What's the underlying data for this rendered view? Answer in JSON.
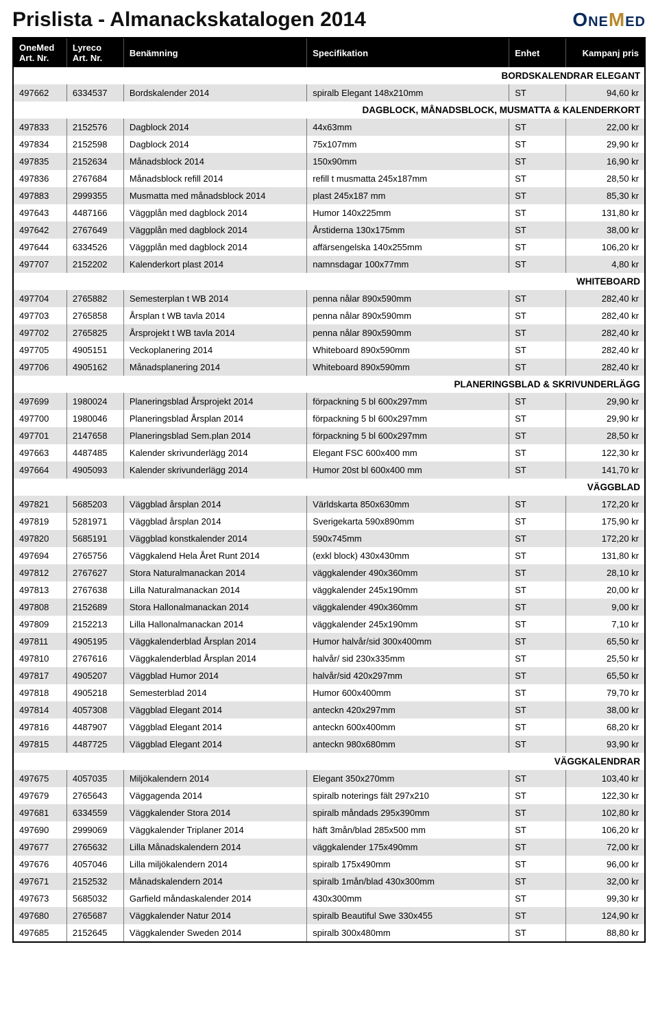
{
  "document_title": "Prislista - Almanackskatalogen 2014",
  "logo": {
    "part1": "One",
    "part2": "M",
    "part3": "ed"
  },
  "columns": {
    "art1": "OneMed Art. Nr.",
    "art2": "Lyreco Art. Nr.",
    "name": "Benämning",
    "spec": "Specifikation",
    "unit": "Enhet",
    "price": "Kampanj pris"
  },
  "colors": {
    "header_bg": "#000000",
    "header_fg": "#ffffff",
    "row_alt_bg": "#e2e2e2",
    "row_plain_bg": "#ffffff",
    "border": "#000000",
    "cell_border": "#777777",
    "logo_blue": "#0a2a5c",
    "logo_gold": "#b88a2e"
  },
  "sections": [
    {
      "title": "BORDSKALENDRAR ELEGANT",
      "rows": [
        {
          "a1": "497662",
          "a2": "6334537",
          "name": "Bordskalender 2014",
          "spec": "spiralb Elegant 148x210mm",
          "unit": "ST",
          "price": "94,60 kr"
        }
      ]
    },
    {
      "title": "DAGBLOCK, MÅNADSBLOCK, MUSMATTA & KALENDERKORT",
      "rows": [
        {
          "a1": "497833",
          "a2": "2152576",
          "name": "Dagblock 2014",
          "spec": "44x63mm",
          "unit": "ST",
          "price": "22,00 kr"
        },
        {
          "a1": "497834",
          "a2": "2152598",
          "name": "Dagblock 2014",
          "spec": "75x107mm",
          "unit": "ST",
          "price": "29,90 kr"
        },
        {
          "a1": "497835",
          "a2": "2152634",
          "name": "Månadsblock 2014",
          "spec": "150x90mm",
          "unit": "ST",
          "price": "16,90 kr"
        },
        {
          "a1": "497836",
          "a2": "2767684",
          "name": "Månadsblock refill 2014",
          "spec": "refill t musmatta 245x187mm",
          "unit": "ST",
          "price": "28,50 kr"
        },
        {
          "a1": "497883",
          "a2": "2999355",
          "name": "Musmatta med månadsblock 2014",
          "spec": "plast 245x187 mm",
          "unit": "ST",
          "price": "85,30 kr"
        },
        {
          "a1": "497643",
          "a2": "4487166",
          "name": "Väggplån med dagblock 2014",
          "spec": "Humor 140x225mm",
          "unit": "ST",
          "price": "131,80 kr"
        },
        {
          "a1": "497642",
          "a2": "2767649",
          "name": "Väggplån med dagblock 2014",
          "spec": "Årstiderna 130x175mm",
          "unit": "ST",
          "price": "38,00 kr"
        },
        {
          "a1": "497644",
          "a2": "6334526",
          "name": "Väggplån med dagblock 2014",
          "spec": "affärsengelska 140x255mm",
          "unit": "ST",
          "price": "106,20 kr"
        },
        {
          "a1": "497707",
          "a2": "2152202",
          "name": "Kalenderkort plast 2014",
          "spec": "namnsdagar 100x77mm",
          "unit": "ST",
          "price": "4,80 kr"
        }
      ]
    },
    {
      "title": "WHITEBOARD",
      "rows": [
        {
          "a1": "497704",
          "a2": "2765882",
          "name": "Semesterplan t WB 2014",
          "spec": "penna nålar 890x590mm",
          "unit": "ST",
          "price": "282,40 kr"
        },
        {
          "a1": "497703",
          "a2": "2765858",
          "name": "Årsplan t WB tavla 2014",
          "spec": "penna nålar 890x590mm",
          "unit": "ST",
          "price": "282,40 kr"
        },
        {
          "a1": "497702",
          "a2": "2765825",
          "name": "Årsprojekt t WB tavla 2014",
          "spec": "penna nålar 890x590mm",
          "unit": "ST",
          "price": "282,40 kr"
        },
        {
          "a1": "497705",
          "a2": "4905151",
          "name": "Veckoplanering 2014",
          "spec": "Whiteboard 890x590mm",
          "unit": "ST",
          "price": "282,40 kr"
        },
        {
          "a1": "497706",
          "a2": "4905162",
          "name": "Månadsplanering 2014",
          "spec": "Whiteboard 890x590mm",
          "unit": "ST",
          "price": "282,40 kr"
        }
      ]
    },
    {
      "title": "PLANERINGSBLAD & SKRIVUNDERLÄGG",
      "rows": [
        {
          "a1": "497699",
          "a2": "1980024",
          "name": "Planeringsblad Årsprojekt 2014",
          "spec": "förpackning 5 bl 600x297mm",
          "unit": "ST",
          "price": "29,90 kr"
        },
        {
          "a1": "497700",
          "a2": "1980046",
          "name": "Planeringsblad Årsplan 2014",
          "spec": "förpackning 5 bl 600x297mm",
          "unit": "ST",
          "price": "29,90 kr"
        },
        {
          "a1": "497701",
          "a2": "2147658",
          "name": "Planeringsblad Sem.plan 2014",
          "spec": "förpackning 5 bl 600x297mm",
          "unit": "ST",
          "price": "28,50 kr"
        },
        {
          "a1": "497663",
          "a2": "4487485",
          "name": "Kalender skrivunderlägg 2014",
          "spec": "Elegant FSC 600x400 mm",
          "unit": "ST",
          "price": "122,30 kr"
        },
        {
          "a1": "497664",
          "a2": "4905093",
          "name": "Kalender skrivunderlägg 2014",
          "spec": "Humor 20st bl  600x400 mm",
          "unit": "ST",
          "price": "141,70 kr"
        }
      ]
    },
    {
      "title": "VÄGGBLAD",
      "rows": [
        {
          "a1": "497821",
          "a2": "5685203",
          "name": "Väggblad årsplan 2014",
          "spec": "Världskarta 850x630mm",
          "unit": "ST",
          "price": "172,20 kr"
        },
        {
          "a1": "497819",
          "a2": "5281971",
          "name": "Väggblad årsplan 2014",
          "spec": "Sverigekarta 590x890mm",
          "unit": "ST",
          "price": "175,90 kr"
        },
        {
          "a1": "497820",
          "a2": "5685191",
          "name": "Väggblad konstkalender 2014",
          "spec": "590x745mm",
          "unit": "ST",
          "price": "172,20 kr"
        },
        {
          "a1": "497694",
          "a2": "2765756",
          "name": "Väggkalend Hela Året Runt 2014",
          "spec": "(exkl block) 430x430mm",
          "unit": "ST",
          "price": "131,80 kr"
        },
        {
          "a1": "497812",
          "a2": "2767627",
          "name": "Stora Naturalmanackan 2014",
          "spec": "väggkalender 490x360mm",
          "unit": "ST",
          "price": "28,10 kr"
        },
        {
          "a1": "497813",
          "a2": "2767638",
          "name": "Lilla Naturalmanackan 2014",
          "spec": "väggkalender 245x190mm",
          "unit": "ST",
          "price": "20,00 kr"
        },
        {
          "a1": "497808",
          "a2": "2152689",
          "name": "Stora Hallonalmanackan 2014",
          "spec": "väggkalender 490x360mm",
          "unit": "ST",
          "price": "9,00 kr"
        },
        {
          "a1": "497809",
          "a2": "2152213",
          "name": "Lilla Hallonalmanackan 2014",
          "spec": "väggkalender 245x190mm",
          "unit": "ST",
          "price": "7,10 kr"
        },
        {
          "a1": "497811",
          "a2": "4905195",
          "name": "Väggkalenderblad Årsplan 2014",
          "spec": "Humor halvår/sid 300x400mm",
          "unit": "ST",
          "price": "65,50 kr"
        },
        {
          "a1": "497810",
          "a2": "2767616",
          "name": "Väggkalenderblad Årsplan 2014",
          "spec": "halvår/ sid 230x335mm",
          "unit": "ST",
          "price": "25,50 kr"
        },
        {
          "a1": "497817",
          "a2": "4905207",
          "name": "Väggblad Humor 2014",
          "spec": "halvår/sid 420x297mm",
          "unit": "ST",
          "price": "65,50 kr"
        },
        {
          "a1": "497818",
          "a2": "4905218",
          "name": "Semesterblad 2014",
          "spec": "Humor 600x400mm",
          "unit": "ST",
          "price": "79,70 kr"
        },
        {
          "a1": "497814",
          "a2": "4057308",
          "name": "Väggblad Elegant  2014",
          "spec": "anteckn 420x297mm",
          "unit": "ST",
          "price": "38,00 kr"
        },
        {
          "a1": "497816",
          "a2": "4487907",
          "name": "Väggblad Elegant  2014",
          "spec": "anteckn 600x400mm",
          "unit": "ST",
          "price": "68,20 kr"
        },
        {
          "a1": "497815",
          "a2": "4487725",
          "name": "Väggblad Elegant  2014",
          "spec": "anteckn 980x680mm",
          "unit": "ST",
          "price": "93,90 kr"
        }
      ]
    },
    {
      "title": "VÄGGKALENDRAR",
      "rows": [
        {
          "a1": "497675",
          "a2": "4057035",
          "name": "Miljökalendern 2014",
          "spec": "Elegant 350x270mm",
          "unit": "ST",
          "price": "103,40 kr"
        },
        {
          "a1": "497679",
          "a2": "2765643",
          "name": "Väggagenda 2014",
          "spec": "spiralb noterings fält 297x210",
          "unit": "ST",
          "price": "122,30 kr"
        },
        {
          "a1": "497681",
          "a2": "6334559",
          "name": "Väggkalender Stora 2014",
          "spec": "spiralb måndads 295x390mm",
          "unit": "ST",
          "price": "102,80 kr"
        },
        {
          "a1": "497690",
          "a2": "2999069",
          "name": "Väggkalender Triplaner 2014",
          "spec": "häft 3mån/blad 285x500 mm",
          "unit": "ST",
          "price": "106,20 kr"
        },
        {
          "a1": "497677",
          "a2": "2765632",
          "name": "Lilla Månadskalendern 2014",
          "spec": "väggkalender 175x490mm",
          "unit": "ST",
          "price": "72,00 kr"
        },
        {
          "a1": "497676",
          "a2": "4057046",
          "name": "Lilla miljökalendern 2014",
          "spec": "spiralb 175x490mm",
          "unit": "ST",
          "price": "96,00 kr"
        },
        {
          "a1": "497671",
          "a2": "2152532",
          "name": "Månadskalendern 2014",
          "spec": "spiralb 1mån/blad 430x300mm",
          "unit": "ST",
          "price": "32,00 kr"
        },
        {
          "a1": "497673",
          "a2": "5685032",
          "name": "Garfield måndaskalender 2014",
          "spec": "430x300mm",
          "unit": "ST",
          "price": "99,30 kr"
        },
        {
          "a1": "497680",
          "a2": "2765687",
          "name": "Väggkalender Natur 2014",
          "spec": "spiralb Beautiful Swe 330x455",
          "unit": "ST",
          "price": "124,90 kr"
        },
        {
          "a1": "497685",
          "a2": "2152645",
          "name": "Väggkalender Sweden 2014",
          "spec": "spiralb 300x480mm",
          "unit": "ST",
          "price": "88,80 kr"
        }
      ]
    }
  ]
}
